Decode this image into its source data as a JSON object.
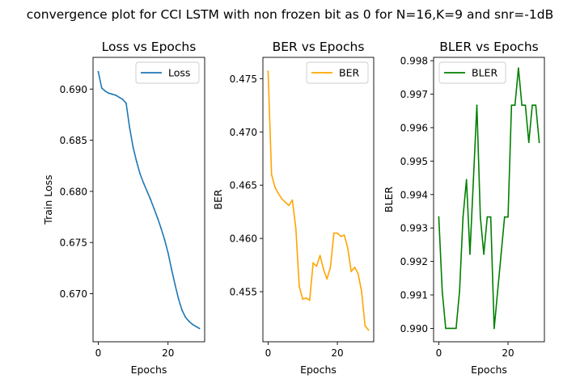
{
  "figure": {
    "suptitle": "convergence plot for CCI LSTM with non frozen bit as 0 for N=16,K=9 and snr=-1dB"
  },
  "chart_data": [
    {
      "type": "line",
      "title": "Loss vs Epochs",
      "xlabel": "Epochs",
      "ylabel": "Train Loss",
      "xlim": [
        -1.5,
        30.5
      ],
      "ylim": [
        0.6653,
        0.6931
      ],
      "xticks": [
        0,
        20
      ],
      "yticks": [
        0.67,
        0.675,
        0.68,
        0.685,
        0.69
      ],
      "ytick_labels": [
        "0.670",
        "0.675",
        "0.680",
        "0.685",
        "0.690"
      ],
      "legend": "upper right",
      "grid": false,
      "series": [
        {
          "name": "Loss",
          "color": "#1f77b4",
          "x": [
            0,
            1,
            2,
            3,
            4,
            5,
            6,
            7,
            8,
            9,
            10,
            11,
            12,
            13,
            14,
            15,
            16,
            17,
            18,
            19,
            20,
            21,
            22,
            23,
            24,
            25,
            26,
            27,
            28,
            29
          ],
          "y": [
            0.6917,
            0.6901,
            0.6898,
            0.6896,
            0.6895,
            0.6894,
            0.6892,
            0.689,
            0.6886,
            0.6862,
            0.6843,
            0.6829,
            0.6817,
            0.6808,
            0.68,
            0.6792,
            0.6783,
            0.6774,
            0.6764,
            0.6753,
            0.674,
            0.6724,
            0.6709,
            0.6695,
            0.6684,
            0.6677,
            0.6673,
            0.667,
            0.6668,
            0.6666
          ]
        }
      ]
    },
    {
      "type": "line",
      "title": "BER vs Epochs",
      "xlabel": "Epochs",
      "ylabel": "BER",
      "xlim": [
        -1.5,
        30.5
      ],
      "ylim": [
        0.4503,
        0.477
      ],
      "xticks": [
        0,
        20
      ],
      "yticks": [
        0.455,
        0.46,
        0.465,
        0.47,
        0.475
      ],
      "ytick_labels": [
        "0.455",
        "0.460",
        "0.465",
        "0.470",
        "0.475"
      ],
      "legend": "upper right",
      "grid": false,
      "series": [
        {
          "name": "BER",
          "color": "#ffa500",
          "x": [
            0,
            1,
            2,
            3,
            4,
            5,
            6,
            7,
            8,
            9,
            10,
            11,
            12,
            13,
            14,
            15,
            16,
            17,
            18,
            19,
            20,
            21,
            22,
            23,
            24,
            25,
            26,
            27,
            28,
            29
          ],
          "y": [
            0.4757,
            0.466,
            0.4648,
            0.4642,
            0.4637,
            0.4634,
            0.4631,
            0.4636,
            0.461,
            0.4555,
            0.4543,
            0.4544,
            0.4542,
            0.4577,
            0.4574,
            0.4584,
            0.4571,
            0.4562,
            0.4573,
            0.4605,
            0.4605,
            0.4602,
            0.4603,
            0.4591,
            0.4569,
            0.4573,
            0.4567,
            0.455,
            0.4518,
            0.4514
          ]
        }
      ]
    },
    {
      "type": "line",
      "title": "BLER vs Epochs",
      "xlabel": "Epochs",
      "ylabel": "BLER",
      "xlim": [
        -1.5,
        30.5
      ],
      "ylim": [
        0.9896,
        0.9981
      ],
      "xticks": [
        0,
        20
      ],
      "yticks": [
        0.99,
        0.991,
        0.992,
        0.993,
        0.994,
        0.995,
        0.996,
        0.997,
        0.998
      ],
      "ytick_labels": [
        "0.990",
        "0.991",
        "0.992",
        "0.993",
        "0.994",
        "0.995",
        "0.996",
        "0.997",
        "0.998"
      ],
      "legend": "upper left",
      "grid": false,
      "series": [
        {
          "name": "BLER",
          "color": "#008000",
          "x": [
            0,
            1,
            2,
            3,
            4,
            5,
            6,
            7,
            8,
            9,
            10,
            11,
            12,
            13,
            14,
            15,
            16,
            17,
            18,
            19,
            20,
            21,
            22,
            23,
            24,
            25,
            26,
            27,
            28,
            29
          ],
          "y": [
            0.99333,
            0.99111,
            0.99,
            0.99,
            0.99,
            0.99,
            0.99111,
            0.99333,
            0.99444,
            0.99222,
            0.99444,
            0.99667,
            0.99333,
            0.99222,
            0.99333,
            0.99333,
            0.99,
            0.99111,
            0.99222,
            0.99333,
            0.99333,
            0.99667,
            0.99667,
            0.99778,
            0.99667,
            0.99667,
            0.99556,
            0.99667,
            0.99667,
            0.99556
          ]
        }
      ]
    }
  ]
}
